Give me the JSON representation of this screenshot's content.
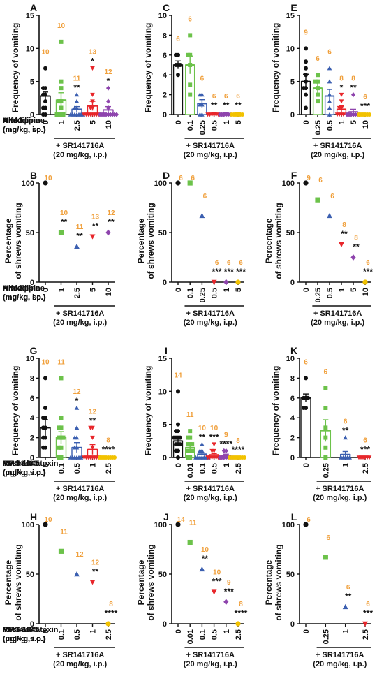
{
  "figure": {
    "colors": {
      "ink": "#111111",
      "number": "#f0a03c",
      "green": "#6cc24a",
      "blue": "#3b5fb0",
      "red": "#e8262b",
      "purple": "#8e44ad",
      "yellow": "#f2c200",
      "fill_black": "#111111"
    },
    "common": {
      "freq_ylabel": "Frequency of vomiting",
      "pct_ylabel_1": "Percentage",
      "pct_ylabel_2": "of shrews vomiting",
      "bracket_1": "+ SR141716A",
      "bracket_2": "(20 mg/kg, i.p.)"
    }
  },
  "chart_data": [
    {
      "id": "A",
      "type": "bar",
      "panel_label": "A",
      "drug_1": "KN62",
      "drug_2": "(mg/kg, i.p.)",
      "categories": [
        "0",
        "1",
        "2.5",
        "5",
        "10"
      ],
      "ylim": [
        0,
        15
      ],
      "yticks": [
        0,
        5,
        10,
        15
      ],
      "values": [
        2.8,
        2.2,
        0.8,
        1.3,
        0.7
      ],
      "sem": [
        0.6,
        1.1,
        0.4,
        0.7,
        0.5
      ],
      "n": [
        "10",
        "10",
        "11",
        "13",
        "12"
      ],
      "sig": [
        "",
        "",
        "**",
        "*",
        "*"
      ],
      "marker": [
        "circle",
        "square",
        "triangle",
        "down",
        "diamond"
      ],
      "color": [
        "fill_black",
        "green",
        "blue",
        "red",
        "purple"
      ],
      "points": [
        [
          0,
          0,
          1,
          1,
          2,
          3,
          3,
          4,
          4,
          7
        ],
        [
          0,
          0,
          0,
          0,
          1,
          2,
          2,
          4,
          5,
          11
        ],
        [
          0,
          0,
          0,
          0,
          0,
          0,
          0,
          1,
          1,
          2,
          3
        ],
        [
          0,
          0,
          0,
          0,
          0,
          0,
          0,
          0,
          1,
          1,
          2,
          3,
          7
        ],
        [
          0,
          0,
          0,
          0,
          0,
          0,
          0,
          0,
          0,
          1,
          2,
          4
        ]
      ]
    },
    {
      "id": "C",
      "type": "bar",
      "panel_label": "C",
      "drug_1": "Nifedipine",
      "drug_2": "(mg/kg, sc.)",
      "categories": [
        "0",
        "0.1",
        "0.25",
        "0.5",
        "1",
        "5"
      ],
      "ylim": [
        0,
        10
      ],
      "yticks": [
        0,
        2,
        4,
        6,
        8,
        10
      ],
      "values": [
        5.0,
        5.0,
        1.1,
        0.1,
        0.1,
        0.1
      ],
      "sem": [
        0.4,
        0.9,
        0.4,
        0.1,
        0.1,
        0.1
      ],
      "n": [
        "6",
        "6",
        "6",
        "6",
        "6",
        "6"
      ],
      "sig": [
        "",
        "",
        "",
        "**",
        "**",
        "**"
      ],
      "marker": [
        "circle",
        "square",
        "triangle",
        "down",
        "diamond",
        "circle"
      ],
      "color": [
        "fill_black",
        "green",
        "blue",
        "red",
        "purple",
        "yellow"
      ],
      "points": [
        [
          4,
          5,
          5,
          5,
          6,
          6
        ],
        [
          2,
          3,
          5,
          6,
          6,
          8
        ],
        [
          0,
          0,
          1,
          1,
          2,
          2
        ],
        [
          0,
          0,
          0,
          0,
          0,
          0
        ],
        [
          0,
          0,
          0,
          0,
          0,
          0
        ],
        [
          0,
          0,
          0,
          0,
          0,
          0
        ]
      ]
    },
    {
      "id": "E",
      "type": "bar",
      "panel_label": "E",
      "drug_1": "Amlodipine",
      "drug_2": "(mg/kg, i.p.)",
      "categories": [
        "0",
        "0.25",
        "0.5",
        "1",
        "5",
        "10"
      ],
      "ylim": [
        0,
        15
      ],
      "yticks": [
        0,
        5,
        10,
        15
      ],
      "values": [
        5.0,
        4.0,
        2.8,
        0.8,
        0.4,
        0.1
      ],
      "sem": [
        1.1,
        1.0,
        1.0,
        0.5,
        0.4,
        0.1
      ],
      "n": [
        "9",
        "6",
        "6",
        "8",
        "8",
        "6"
      ],
      "sig": [
        "",
        "",
        "",
        "*",
        "**",
        "***"
      ],
      "marker": [
        "circle",
        "square",
        "triangle",
        "down",
        "diamond",
        "circle"
      ],
      "color": [
        "fill_black",
        "green",
        "blue",
        "red",
        "purple",
        "yellow"
      ],
      "points": [
        [
          1,
          3,
          4,
          4,
          5,
          6,
          7,
          8,
          10
        ],
        [
          2,
          3,
          4,
          5,
          5,
          6
        ],
        [
          0,
          1,
          2,
          3,
          5,
          7
        ],
        [
          0,
          0,
          0,
          0,
          1,
          1,
          2,
          3
        ],
        [
          0,
          0,
          0,
          0,
          0,
          0,
          0,
          3
        ],
        [
          0,
          0,
          0,
          0,
          0,
          0
        ]
      ]
    },
    {
      "id": "B",
      "type": "scatter",
      "panel_label": "B",
      "drug_1": "KN62",
      "drug_2": "(mg/kg, i.p.)",
      "categories": [
        "0",
        "1",
        "2.5",
        "5",
        "10"
      ],
      "ylim": [
        0,
        100
      ],
      "yticks": [
        0,
        50,
        100
      ],
      "values": [
        100,
        50,
        36,
        46,
        50
      ],
      "n": [
        "10",
        "10",
        "11",
        "13",
        "12"
      ],
      "sig": [
        "",
        "**",
        "**",
        "**",
        "**"
      ],
      "marker": [
        "circle",
        "square",
        "triangle",
        "down",
        "diamond"
      ],
      "color": [
        "fill_black",
        "green",
        "blue",
        "red",
        "purple"
      ]
    },
    {
      "id": "D",
      "type": "scatter",
      "panel_label": "D",
      "drug_1": "Nifedipine",
      "drug_2": "(mg/kg, sc.)",
      "categories": [
        "0",
        "0.1",
        "0.25",
        "0.5",
        "1",
        "5"
      ],
      "ylim": [
        0,
        100
      ],
      "yticks": [
        0,
        50,
        100
      ],
      "values": [
        100,
        100,
        67,
        0,
        0,
        0
      ],
      "n": [
        "6",
        "6",
        "6",
        "6",
        "6",
        "6"
      ],
      "sig": [
        "",
        "",
        "",
        "***",
        "***",
        "***"
      ],
      "marker": [
        "circle",
        "square",
        "triangle",
        "down",
        "diamond",
        "circle"
      ],
      "color": [
        "fill_black",
        "green",
        "blue",
        "red",
        "purple",
        "yellow"
      ]
    },
    {
      "id": "F",
      "type": "scatter",
      "panel_label": "F",
      "drug_1": "Amlodipine",
      "drug_2": "(mg/kg, i.p.)",
      "categories": [
        "0",
        "0.25",
        "0.5",
        "1",
        "5",
        "10"
      ],
      "ylim": [
        0,
        100
      ],
      "yticks": [
        0,
        50,
        100
      ],
      "values": [
        100,
        83,
        67,
        38,
        25,
        0
      ],
      "n": [
        "9",
        "6",
        "6",
        "8",
        "8",
        "6"
      ],
      "sig": [
        "",
        "",
        "",
        "**",
        "**",
        "***"
      ],
      "marker": [
        "circle",
        "square",
        "triangle",
        "down",
        "diamond",
        "circle"
      ],
      "color": [
        "fill_black",
        "green",
        "blue",
        "red",
        "purple",
        "yellow"
      ]
    },
    {
      "id": "G",
      "type": "bar",
      "panel_label": "G",
      "drug_1": "YM 58483",
      "drug_2": "(mg/kg, i.p.)",
      "categories": [
        "0",
        "0.1",
        "0.5",
        "1",
        "2.5"
      ],
      "ylim": [
        0,
        10
      ],
      "yticks": [
        0,
        2,
        4,
        6,
        8,
        10
      ],
      "values": [
        3.0,
        2.0,
        1.0,
        0.8,
        0.05
      ],
      "sem": [
        0.8,
        0.6,
        0.5,
        0.5,
        0.05
      ],
      "n": [
        "10",
        "11",
        "12",
        "12",
        "8"
      ],
      "sig": [
        "",
        "",
        "*",
        "**",
        "****"
      ],
      "marker": [
        "circle",
        "square",
        "triangle",
        "down",
        "circle"
      ],
      "color": [
        "fill_black",
        "green",
        "blue",
        "red",
        "yellow"
      ],
      "points": [
        [
          1,
          1,
          2,
          2,
          3,
          3,
          4,
          4,
          5,
          8
        ],
        [
          0,
          0,
          1,
          1,
          2,
          2,
          2,
          3,
          3,
          4,
          8
        ],
        [
          0,
          0,
          0,
          0,
          0,
          0,
          1,
          1,
          2,
          2,
          3,
          5
        ],
        [
          0,
          0,
          0,
          0,
          0,
          0,
          0,
          0,
          1,
          2,
          3,
          3
        ],
        [
          0,
          0,
          0,
          0,
          0,
          0,
          0,
          0
        ]
      ]
    },
    {
      "id": "I",
      "type": "bar",
      "panel_label": "I",
      "drug_1": "MRS-1845",
      "drug_2": "(mg/kg, i.p.)",
      "categories": [
        "0",
        "0.01",
        "0.1",
        "0.5",
        "1",
        "2.5"
      ],
      "ylim": [
        0,
        15
      ],
      "yticks": [
        0,
        5,
        10,
        15
      ],
      "values": [
        2.5,
        1.5,
        0.5,
        0.4,
        0.3,
        0.05
      ],
      "sem": [
        0.7,
        0.4,
        0.2,
        0.2,
        0.2,
        0.05
      ],
      "n": [
        "14",
        "11",
        "10",
        "10",
        "9",
        "8"
      ],
      "sig": [
        "",
        "",
        "**",
        "***",
        "****",
        "****"
      ],
      "marker": [
        "circle",
        "square",
        "triangle",
        "down",
        "diamond",
        "circle"
      ],
      "color": [
        "fill_black",
        "green",
        "blue",
        "red",
        "purple",
        "yellow"
      ],
      "points": [
        [
          0,
          1,
          1,
          2,
          2,
          2,
          3,
          3,
          3,
          3,
          4,
          4,
          5,
          10
        ],
        [
          0,
          0,
          1,
          1,
          1,
          2,
          2,
          2,
          3,
          3,
          4
        ],
        [
          0,
          0,
          0,
          0,
          0,
          0,
          0,
          1,
          1,
          2
        ],
        [
          0,
          0,
          0,
          0,
          0,
          0,
          0,
          1,
          1,
          2
        ],
        [
          0,
          0,
          0,
          0,
          0,
          0,
          0,
          1,
          1
        ],
        [
          0,
          0,
          0,
          0,
          0,
          0,
          0,
          0
        ]
      ]
    },
    {
      "id": "K",
      "type": "bar",
      "panel_label": "K",
      "drug_1": "Resiniferatoxin",
      "drug_2": "(µg/kg, s.c.)",
      "categories": [
        "0",
        "0.25",
        "1",
        "2.5"
      ],
      "ylim": [
        0,
        10
      ],
      "yticks": [
        0,
        2,
        4,
        6,
        8,
        10
      ],
      "values": [
        6.0,
        2.7,
        0.3,
        0.05
      ],
      "sem": [
        0.4,
        1.1,
        0.3,
        0.05
      ],
      "n": [
        "6",
        "6",
        "6",
        "6"
      ],
      "sig": [
        "",
        "",
        "**",
        "***"
      ],
      "marker": [
        "circle",
        "square",
        "triangle",
        "down"
      ],
      "color": [
        "fill_black",
        "green",
        "blue",
        "red"
      ],
      "points": [
        [
          5,
          5,
          6,
          6,
          6,
          8
        ],
        [
          0,
          1,
          2,
          3,
          5,
          7
        ],
        [
          0,
          0,
          0,
          0,
          0,
          2
        ],
        [
          0,
          0,
          0,
          0,
          0,
          0
        ]
      ]
    },
    {
      "id": "H",
      "type": "scatter",
      "panel_label": "H",
      "drug_1": "YM 58483",
      "drug_2": "(mg/kg, i.p.)",
      "categories": [
        "0",
        "0.1",
        "0.5",
        "1",
        "2.5"
      ],
      "ylim": [
        0,
        100
      ],
      "yticks": [
        0,
        50,
        100
      ],
      "values": [
        100,
        73,
        50,
        42,
        0
      ],
      "n": [
        "10",
        "11",
        "12",
        "12",
        "8"
      ],
      "sig": [
        "",
        "",
        "",
        "**",
        "****"
      ],
      "marker": [
        "circle",
        "square",
        "triangle",
        "down",
        "circle"
      ],
      "color": [
        "fill_black",
        "green",
        "blue",
        "red",
        "yellow"
      ]
    },
    {
      "id": "J",
      "type": "scatter",
      "panel_label": "J",
      "drug_1": "MRS-1845",
      "drug_2": "(mg/kg, i.p.)",
      "categories": [
        "0",
        "0.01",
        "0.1",
        "0.5",
        "1",
        "2.5"
      ],
      "ylim": [
        0,
        100
      ],
      "yticks": [
        0,
        50,
        100
      ],
      "values": [
        100,
        82,
        55,
        32,
        22,
        0
      ],
      "n": [
        "14",
        "11",
        "10",
        "10",
        "9",
        "8"
      ],
      "sig": [
        "",
        "",
        "**",
        "***",
        "***",
        "****"
      ],
      "marker": [
        "circle",
        "square",
        "triangle",
        "down",
        "diamond",
        "circle"
      ],
      "color": [
        "fill_black",
        "green",
        "blue",
        "red",
        "purple",
        "yellow"
      ]
    },
    {
      "id": "L",
      "type": "scatter",
      "panel_label": "L",
      "drug_1": "Resiniferatoxin",
      "drug_2": "(µg/kg, s.c.)",
      "categories": [
        "0",
        "0.25",
        "1",
        "2.5"
      ],
      "ylim": [
        0,
        100
      ],
      "yticks": [
        0,
        50,
        100
      ],
      "values": [
        100,
        67,
        17,
        0
      ],
      "n": [
        "6",
        "6",
        "6",
        "6"
      ],
      "sig": [
        "",
        "",
        "**",
        "***"
      ],
      "marker": [
        "circle",
        "square",
        "triangle",
        "down"
      ],
      "color": [
        "fill_black",
        "green",
        "blue",
        "red"
      ]
    }
  ]
}
